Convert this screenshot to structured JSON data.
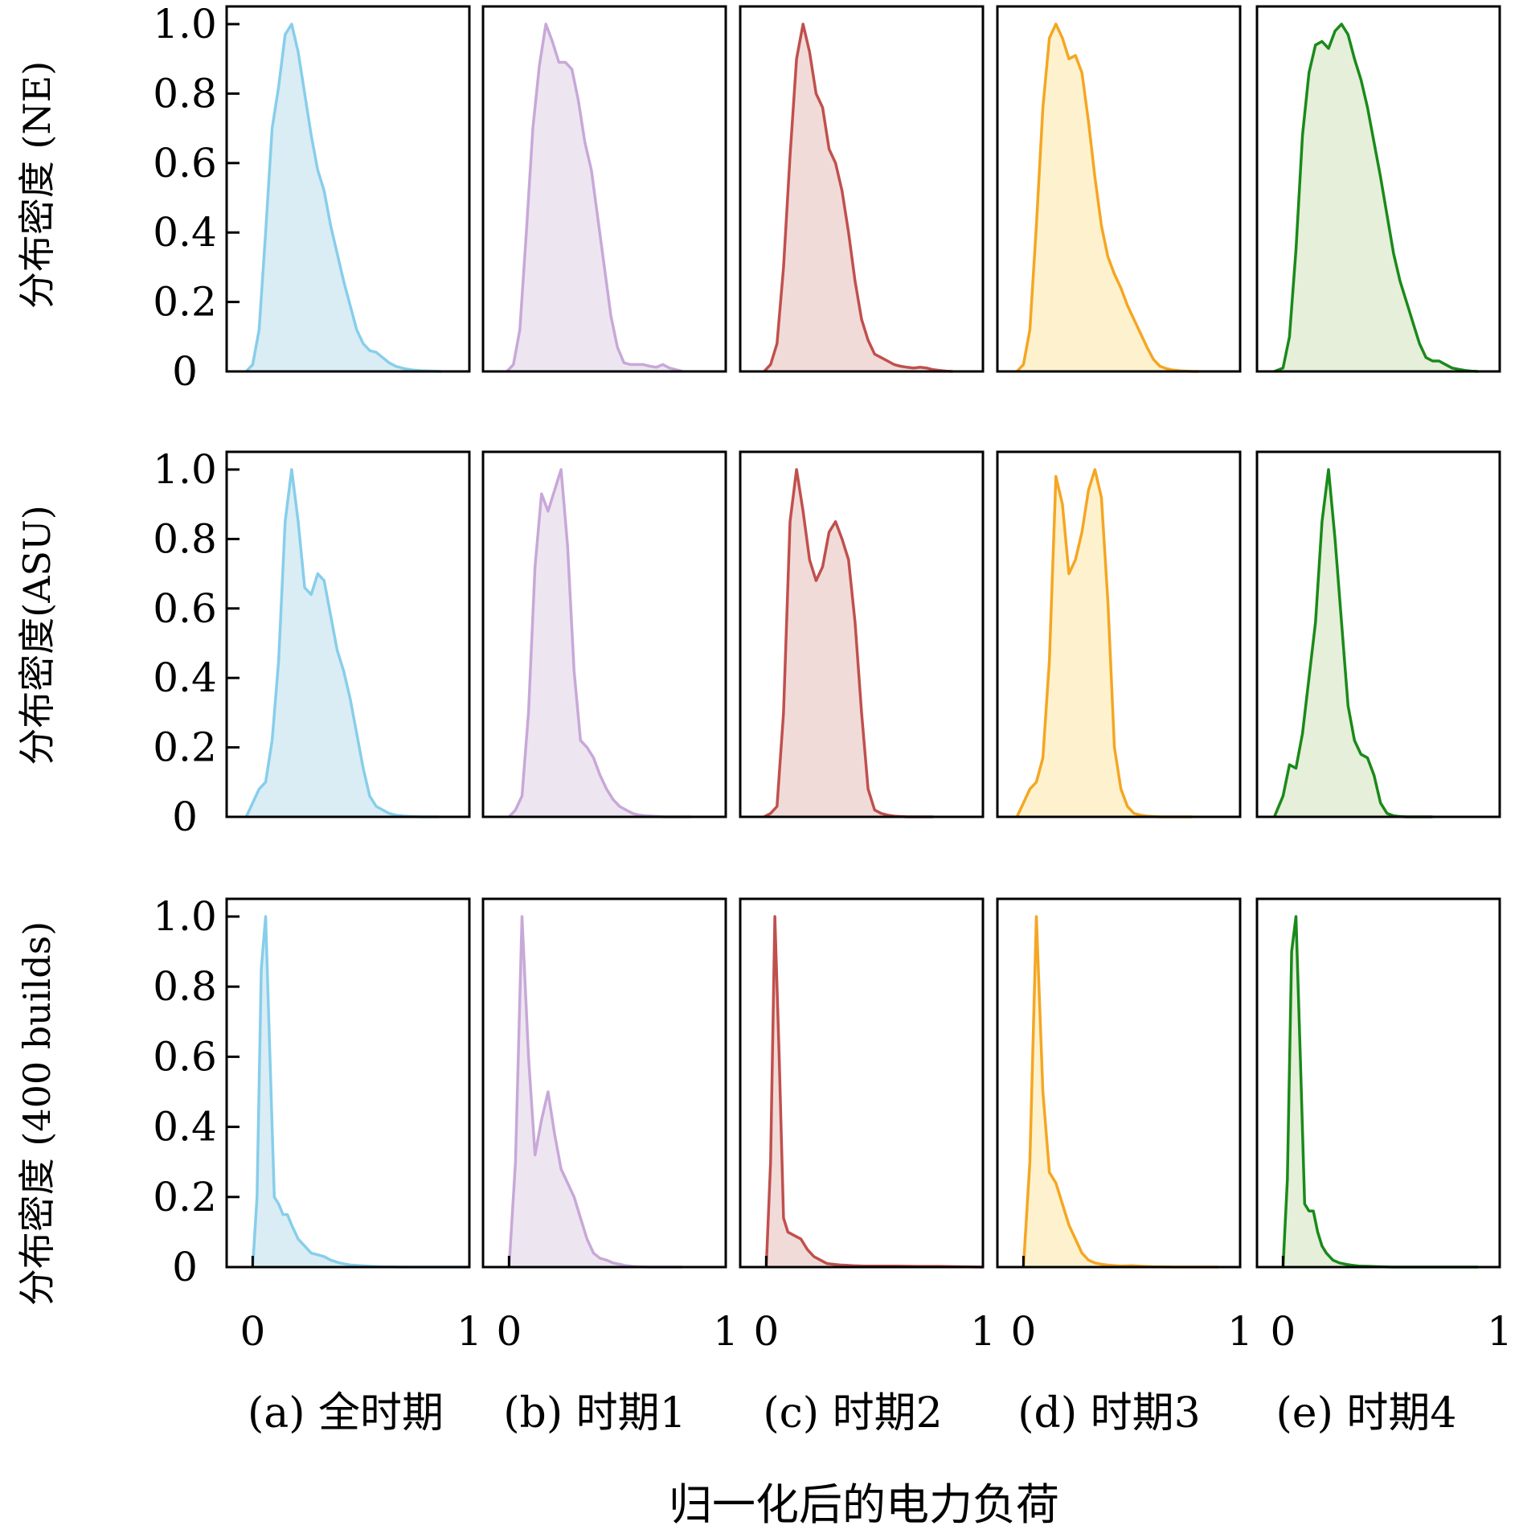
{
  "row_ylabels": [
    "分布密度 (NE)",
    "分布密度(ASU)",
    "分布密度 (400 builds)"
  ],
  "column_labels": [
    "(a) 全时期",
    "(b) 时期1",
    "(c) 时期2",
    "(d) 时期3",
    "(e) 时期4"
  ],
  "xlabel": "归一化后的电力负荷",
  "y_tick_labels": [
    "0",
    "0.2",
    "0.4",
    "0.6",
    "0.8",
    "1.0"
  ],
  "x_tick_labels": [
    "0",
    "1"
  ],
  "colors": {
    "lines": [
      "#87ceeb",
      "#c8a8d8",
      "#c0504d",
      "#f5a623",
      "#1a8a1a"
    ],
    "fills": [
      "#daedf4",
      "#ede6f1",
      "#f1dbd9",
      "#fdf2cd",
      "#e5efd9"
    ]
  },
  "chart_data": [
    {
      "type": "area",
      "title": "(a) 全时期",
      "ylabel": "分布密度 (NE)",
      "xlim": [
        -0.12,
        1.0
      ],
      "ylim": [
        0,
        1.0
      ],
      "x": [
        -0.03,
        0,
        0.03,
        0.06,
        0.09,
        0.12,
        0.15,
        0.18,
        0.21,
        0.24,
        0.27,
        0.3,
        0.33,
        0.36,
        0.39,
        0.42,
        0.45,
        0.48,
        0.51,
        0.54,
        0.57,
        0.6,
        0.63,
        0.66,
        0.7,
        0.74,
        0.78,
        0.83,
        0.87
      ],
      "y": [
        0,
        0.02,
        0.12,
        0.4,
        0.7,
        0.82,
        0.97,
        1.0,
        0.92,
        0.8,
        0.68,
        0.58,
        0.52,
        0.42,
        0.34,
        0.26,
        0.19,
        0.12,
        0.08,
        0.06,
        0.055,
        0.04,
        0.025,
        0.015,
        0.008,
        0.004,
        0.002,
        0.001,
        0
      ]
    },
    {
      "type": "area",
      "title": "(b) 时期1",
      "ylabel": "分布密度 (NE)",
      "xlim": [
        -0.12,
        1.0
      ],
      "ylim": [
        0,
        1.0
      ],
      "x": [
        -0.01,
        0.02,
        0.05,
        0.08,
        0.11,
        0.14,
        0.17,
        0.2,
        0.23,
        0.26,
        0.29,
        0.32,
        0.35,
        0.38,
        0.41,
        0.44,
        0.47,
        0.5,
        0.53,
        0.56,
        0.59,
        0.62,
        0.65,
        0.68,
        0.71,
        0.74,
        0.77,
        0.8
      ],
      "y": [
        0,
        0.02,
        0.12,
        0.4,
        0.7,
        0.88,
        1.0,
        0.95,
        0.89,
        0.89,
        0.87,
        0.78,
        0.66,
        0.58,
        0.44,
        0.3,
        0.16,
        0.07,
        0.025,
        0.02,
        0.02,
        0.02,
        0.015,
        0.012,
        0.02,
        0.01,
        0.005,
        0
      ]
    },
    {
      "type": "area",
      "title": "(c) 时期2",
      "ylabel": "分布密度 (NE)",
      "xlim": [
        -0.12,
        1.0
      ],
      "ylim": [
        0,
        1.0
      ],
      "x": [
        -0.01,
        0.02,
        0.05,
        0.08,
        0.11,
        0.14,
        0.17,
        0.2,
        0.23,
        0.26,
        0.29,
        0.32,
        0.35,
        0.38,
        0.41,
        0.44,
        0.47,
        0.5,
        0.53,
        0.56,
        0.59,
        0.62,
        0.65,
        0.68,
        0.71,
        0.74,
        0.77,
        0.8,
        0.83,
        0.86
      ],
      "y": [
        0,
        0.02,
        0.08,
        0.3,
        0.62,
        0.9,
        1.0,
        0.92,
        0.8,
        0.76,
        0.64,
        0.6,
        0.52,
        0.4,
        0.26,
        0.15,
        0.09,
        0.05,
        0.04,
        0.03,
        0.02,
        0.015,
        0.012,
        0.01,
        0.012,
        0.01,
        0.005,
        0.003,
        0.001,
        0
      ]
    },
    {
      "type": "area",
      "title": "(d) 时期3",
      "ylabel": "分布密度 (NE)",
      "xlim": [
        -0.12,
        1.0
      ],
      "ylim": [
        0,
        1.0
      ],
      "x": [
        -0.03,
        0,
        0.03,
        0.06,
        0.09,
        0.12,
        0.15,
        0.18,
        0.21,
        0.24,
        0.27,
        0.3,
        0.33,
        0.36,
        0.39,
        0.42,
        0.45,
        0.48,
        0.51,
        0.54,
        0.57,
        0.6,
        0.63,
        0.66,
        0.69,
        0.72,
        0.75,
        0.78,
        0.81
      ],
      "y": [
        0,
        0.02,
        0.12,
        0.42,
        0.76,
        0.96,
        1.0,
        0.96,
        0.9,
        0.91,
        0.86,
        0.72,
        0.56,
        0.42,
        0.33,
        0.28,
        0.24,
        0.19,
        0.15,
        0.11,
        0.07,
        0.035,
        0.015,
        0.008,
        0.004,
        0.002,
        0.001,
        0,
        0
      ]
    },
    {
      "type": "area",
      "title": "(e) 时期4",
      "ylabel": "分布密度 (NE)",
      "xlim": [
        -0.12,
        1.0
      ],
      "ylim": [
        0,
        1.0
      ],
      "x": [
        -0.04,
        0,
        0.03,
        0.06,
        0.09,
        0.12,
        0.15,
        0.18,
        0.21,
        0.24,
        0.27,
        0.3,
        0.33,
        0.36,
        0.39,
        0.42,
        0.45,
        0.48,
        0.51,
        0.54,
        0.57,
        0.6,
        0.63,
        0.66,
        0.69,
        0.72,
        0.75,
        0.78,
        0.81,
        0.84,
        0.87,
        0.9
      ],
      "y": [
        0,
        0.01,
        0.1,
        0.35,
        0.68,
        0.86,
        0.94,
        0.95,
        0.93,
        0.98,
        1.0,
        0.97,
        0.9,
        0.84,
        0.76,
        0.66,
        0.56,
        0.45,
        0.34,
        0.26,
        0.2,
        0.14,
        0.08,
        0.04,
        0.03,
        0.03,
        0.02,
        0.01,
        0.006,
        0.003,
        0.001,
        0
      ]
    },
    {
      "type": "area",
      "title": "(a) 全时期",
      "ylabel": "分布密度(ASU)",
      "xlim": [
        -0.12,
        1.0
      ],
      "ylim": [
        0,
        1.0
      ],
      "x": [
        -0.03,
        0,
        0.03,
        0.06,
        0.09,
        0.12,
        0.15,
        0.18,
        0.21,
        0.24,
        0.27,
        0.3,
        0.33,
        0.36,
        0.39,
        0.42,
        0.45,
        0.48,
        0.51,
        0.54,
        0.57,
        0.6,
        0.63,
        0.66,
        0.7,
        0.74,
        0.78,
        0.82,
        0.86
      ],
      "y": [
        0,
        0.04,
        0.08,
        0.1,
        0.22,
        0.45,
        0.85,
        1.0,
        0.85,
        0.66,
        0.64,
        0.7,
        0.68,
        0.58,
        0.48,
        0.42,
        0.34,
        0.24,
        0.14,
        0.06,
        0.03,
        0.02,
        0.01,
        0.005,
        0.002,
        0.001,
        0,
        0,
        0
      ]
    },
    {
      "type": "area",
      "title": "(b) 时期1",
      "ylabel": "分布密度(ASU)",
      "xlim": [
        -0.12,
        1.0
      ],
      "ylim": [
        0,
        1.0
      ],
      "x": [
        0,
        0.03,
        0.06,
        0.09,
        0.12,
        0.15,
        0.18,
        0.21,
        0.24,
        0.27,
        0.3,
        0.33,
        0.36,
        0.39,
        0.42,
        0.45,
        0.48,
        0.51,
        0.54,
        0.57,
        0.6,
        0.63,
        0.66,
        0.69,
        0.72,
        0.75,
        0.78,
        0.81,
        0.84
      ],
      "y": [
        0,
        0.02,
        0.06,
        0.3,
        0.72,
        0.93,
        0.88,
        0.94,
        1.0,
        0.78,
        0.42,
        0.22,
        0.2,
        0.17,
        0.12,
        0.08,
        0.05,
        0.03,
        0.02,
        0.01,
        0.005,
        0.003,
        0.002,
        0.001,
        0,
        0,
        0,
        0,
        0
      ]
    },
    {
      "type": "area",
      "title": "(c) 时期2",
      "ylabel": "分布密度(ASU)",
      "xlim": [
        -0.12,
        1.0
      ],
      "ylim": [
        0,
        1.0
      ],
      "x": [
        -0.01,
        0.02,
        0.05,
        0.08,
        0.11,
        0.14,
        0.17,
        0.2,
        0.23,
        0.26,
        0.29,
        0.32,
        0.35,
        0.38,
        0.41,
        0.44,
        0.47,
        0.5,
        0.53,
        0.56,
        0.59,
        0.62,
        0.65,
        0.68,
        0.71,
        0.74,
        0.77
      ],
      "y": [
        0,
        0.01,
        0.03,
        0.3,
        0.85,
        1.0,
        0.88,
        0.74,
        0.68,
        0.72,
        0.82,
        0.85,
        0.8,
        0.74,
        0.56,
        0.3,
        0.08,
        0.02,
        0.01,
        0.005,
        0.002,
        0.001,
        0,
        0,
        0,
        0,
        0
      ]
    },
    {
      "type": "area",
      "title": "(d) 时期3",
      "ylabel": "分布密度(ASU)",
      "xlim": [
        -0.12,
        1.0
      ],
      "ylim": [
        0,
        1.0
      ],
      "x": [
        -0.03,
        0,
        0.03,
        0.06,
        0.09,
        0.12,
        0.15,
        0.18,
        0.21,
        0.24,
        0.27,
        0.3,
        0.33,
        0.36,
        0.39,
        0.42,
        0.45,
        0.48,
        0.51,
        0.54,
        0.57,
        0.6,
        0.63,
        0.66,
        0.69,
        0.72,
        0.75,
        0.78
      ],
      "y": [
        0,
        0.04,
        0.08,
        0.1,
        0.17,
        0.45,
        0.98,
        0.9,
        0.7,
        0.74,
        0.82,
        0.94,
        1.0,
        0.92,
        0.62,
        0.2,
        0.08,
        0.03,
        0.01,
        0.005,
        0.002,
        0.001,
        0,
        0,
        0,
        0,
        0,
        0
      ]
    },
    {
      "type": "area",
      "title": "(e) 时期4",
      "ylabel": "分布密度(ASU)",
      "xlim": [
        -0.12,
        1.0
      ],
      "ylim": [
        0,
        1.0
      ],
      "x": [
        -0.04,
        0,
        0.03,
        0.06,
        0.09,
        0.12,
        0.15,
        0.18,
        0.21,
        0.24,
        0.27,
        0.3,
        0.33,
        0.36,
        0.39,
        0.42,
        0.45,
        0.48,
        0.51,
        0.54,
        0.57,
        0.6,
        0.63,
        0.66,
        0.69
      ],
      "y": [
        0,
        0.06,
        0.15,
        0.14,
        0.24,
        0.4,
        0.56,
        0.85,
        1.0,
        0.8,
        0.56,
        0.32,
        0.22,
        0.18,
        0.17,
        0.12,
        0.04,
        0.01,
        0.003,
        0.001,
        0,
        0,
        0,
        0,
        0
      ]
    },
    {
      "type": "area",
      "title": "(a) 全时期",
      "ylabel": "分布密度 (400 builds)",
      "xlim": [
        -0.12,
        1.0
      ],
      "ylim": [
        0,
        1.0
      ],
      "x": [
        0,
        0.02,
        0.04,
        0.06,
        0.08,
        0.1,
        0.12,
        0.14,
        0.16,
        0.18,
        0.21,
        0.24,
        0.27,
        0.3,
        0.33,
        0.36,
        0.4,
        0.45,
        0.5,
        0.55,
        0.6,
        0.7,
        0.8,
        0.9,
        1.0
      ],
      "y": [
        0,
        0.2,
        0.85,
        1.0,
        0.6,
        0.2,
        0.18,
        0.15,
        0.15,
        0.12,
        0.08,
        0.06,
        0.04,
        0.035,
        0.03,
        0.02,
        0.012,
        0.006,
        0.004,
        0.002,
        0.001,
        0,
        0,
        0,
        0
      ]
    },
    {
      "type": "area",
      "title": "(b) 时期1",
      "ylabel": "分布密度 (400 builds)",
      "xlim": [
        -0.12,
        1.0
      ],
      "ylim": [
        0,
        1.0
      ],
      "x": [
        0,
        0.03,
        0.06,
        0.09,
        0.12,
        0.15,
        0.18,
        0.21,
        0.24,
        0.27,
        0.3,
        0.33,
        0.36,
        0.39,
        0.42,
        0.45,
        0.48,
        0.51,
        0.54,
        0.57,
        0.6,
        0.65,
        0.7,
        0.8
      ],
      "y": [
        0,
        0.3,
        1.0,
        0.6,
        0.32,
        0.42,
        0.5,
        0.38,
        0.28,
        0.24,
        0.2,
        0.14,
        0.08,
        0.04,
        0.025,
        0.02,
        0.012,
        0.008,
        0.004,
        0.002,
        0.001,
        0,
        0,
        0
      ]
    },
    {
      "type": "area",
      "title": "(c) 时期2",
      "ylabel": "分布密度 (400 builds)",
      "xlim": [
        -0.12,
        1.0
      ],
      "ylim": [
        0,
        1.0
      ],
      "x": [
        0,
        0.02,
        0.04,
        0.06,
        0.08,
        0.1,
        0.13,
        0.16,
        0.19,
        0.22,
        0.25,
        0.28,
        0.31,
        0.34,
        0.37,
        0.4,
        0.45,
        0.5,
        0.6,
        0.7,
        0.8,
        0.9,
        1.0
      ],
      "y": [
        0,
        0.3,
        1.0,
        0.6,
        0.14,
        0.1,
        0.09,
        0.08,
        0.05,
        0.03,
        0.02,
        0.01,
        0.008,
        0.006,
        0.005,
        0.004,
        0.003,
        0.003,
        0.003,
        0.002,
        0.002,
        0.001,
        0
      ]
    },
    {
      "type": "area",
      "title": "(d) 时期3",
      "ylabel": "分布密度 (400 builds)",
      "xlim": [
        -0.12,
        1.0
      ],
      "ylim": [
        0,
        1.0
      ],
      "x": [
        0,
        0.03,
        0.06,
        0.09,
        0.12,
        0.15,
        0.18,
        0.21,
        0.24,
        0.27,
        0.3,
        0.33,
        0.36,
        0.4,
        0.45,
        0.5,
        0.55,
        0.6,
        0.7,
        0.8,
        0.9
      ],
      "y": [
        0,
        0.3,
        1.0,
        0.5,
        0.27,
        0.24,
        0.18,
        0.12,
        0.08,
        0.04,
        0.02,
        0.012,
        0.008,
        0.005,
        0.003,
        0.004,
        0.002,
        0.001,
        0,
        0,
        0
      ]
    },
    {
      "type": "area",
      "title": "(e) 时期4",
      "ylabel": "分布密度 (400 builds)",
      "xlim": [
        -0.12,
        1.0
      ],
      "ylim": [
        0,
        1.0
      ],
      "x": [
        0,
        0.02,
        0.04,
        0.06,
        0.08,
        0.1,
        0.12,
        0.14,
        0.16,
        0.18,
        0.2,
        0.23,
        0.26,
        0.29,
        0.32,
        0.35,
        0.4,
        0.45,
        0.5,
        0.6,
        0.7,
        0.8,
        0.9
      ],
      "y": [
        0,
        0.25,
        0.9,
        1.0,
        0.6,
        0.18,
        0.16,
        0.16,
        0.1,
        0.06,
        0.04,
        0.02,
        0.012,
        0.008,
        0.005,
        0.003,
        0.002,
        0.001,
        0,
        0,
        0,
        0,
        0
      ]
    }
  ]
}
